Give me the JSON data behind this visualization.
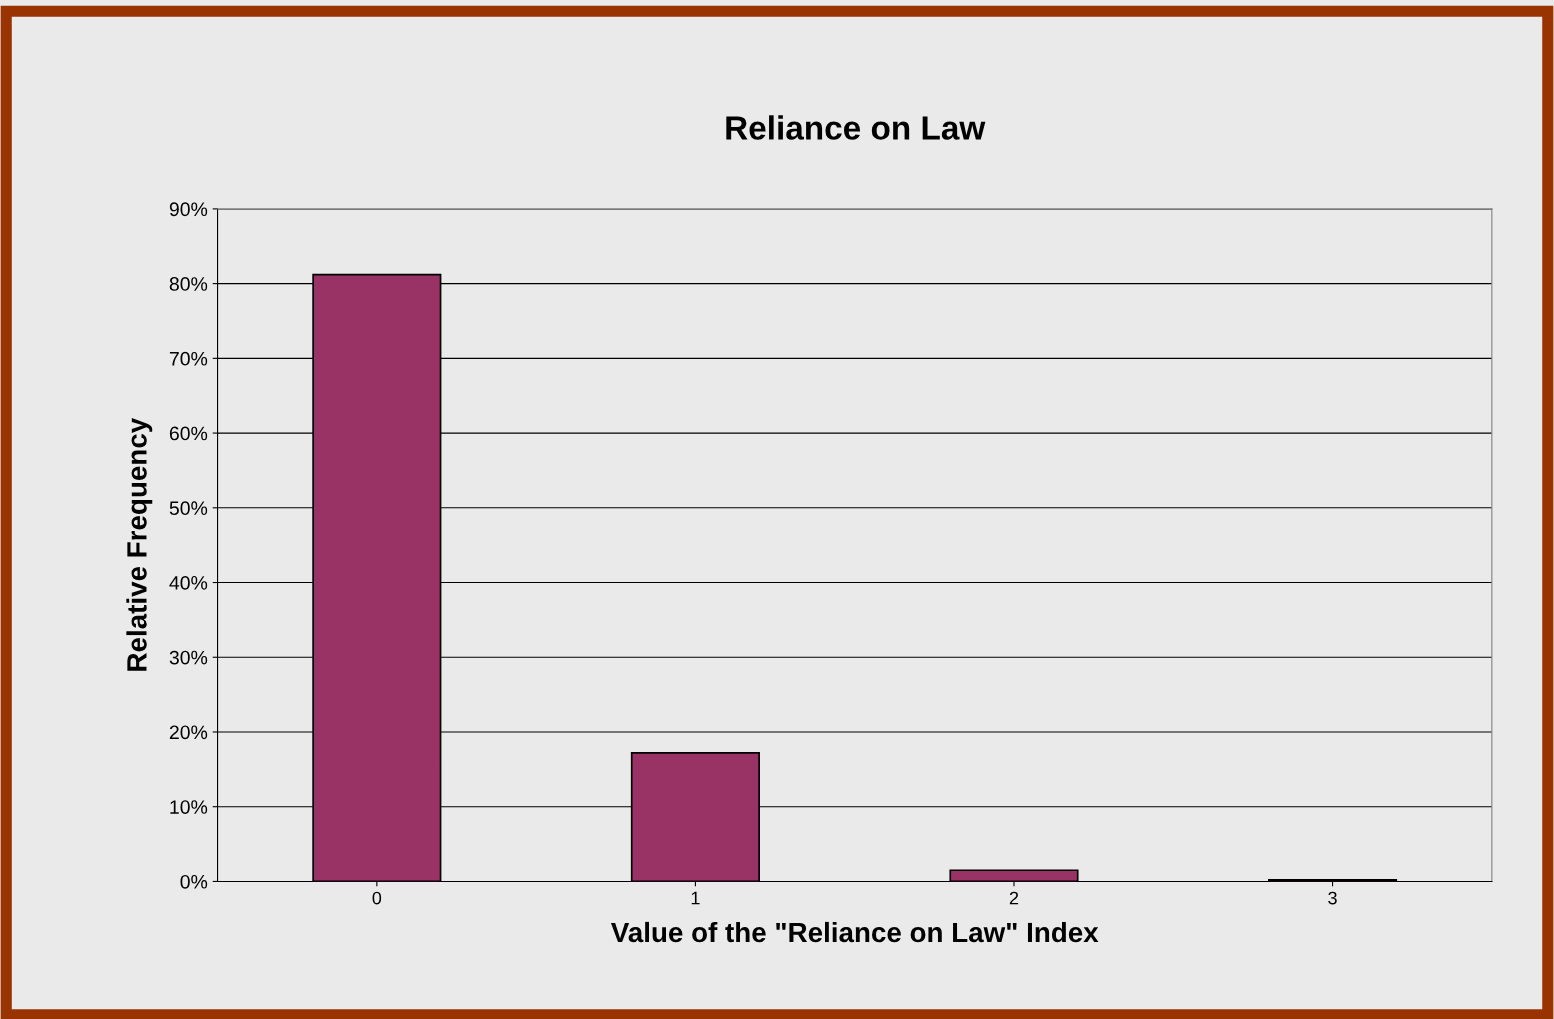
{
  "chart_data": {
    "type": "bar",
    "title": "Reliance on Law",
    "xlabel": "Value of the \"Reliance on Law\" Index",
    "ylabel": "Relative Frequency",
    "categories": [
      "0",
      "1",
      "2",
      "3"
    ],
    "values": [
      81.2,
      17.2,
      1.5,
      0.2
    ],
    "color": "#993366",
    "ylim": [
      0,
      90
    ],
    "yticks": [
      {
        "value": 0,
        "label": "0%"
      },
      {
        "value": 10,
        "label": "10%"
      },
      {
        "value": 20,
        "label": "20%"
      },
      {
        "value": 30,
        "label": "30%"
      },
      {
        "value": 40,
        "label": "40%"
      },
      {
        "value": 50,
        "label": "50%"
      },
      {
        "value": 60,
        "label": "60%"
      },
      {
        "value": 70,
        "label": "70%"
      },
      {
        "value": 80,
        "label": "80%"
      },
      {
        "value": 90,
        "label": "90%"
      }
    ],
    "grid": "y",
    "legend": false
  }
}
